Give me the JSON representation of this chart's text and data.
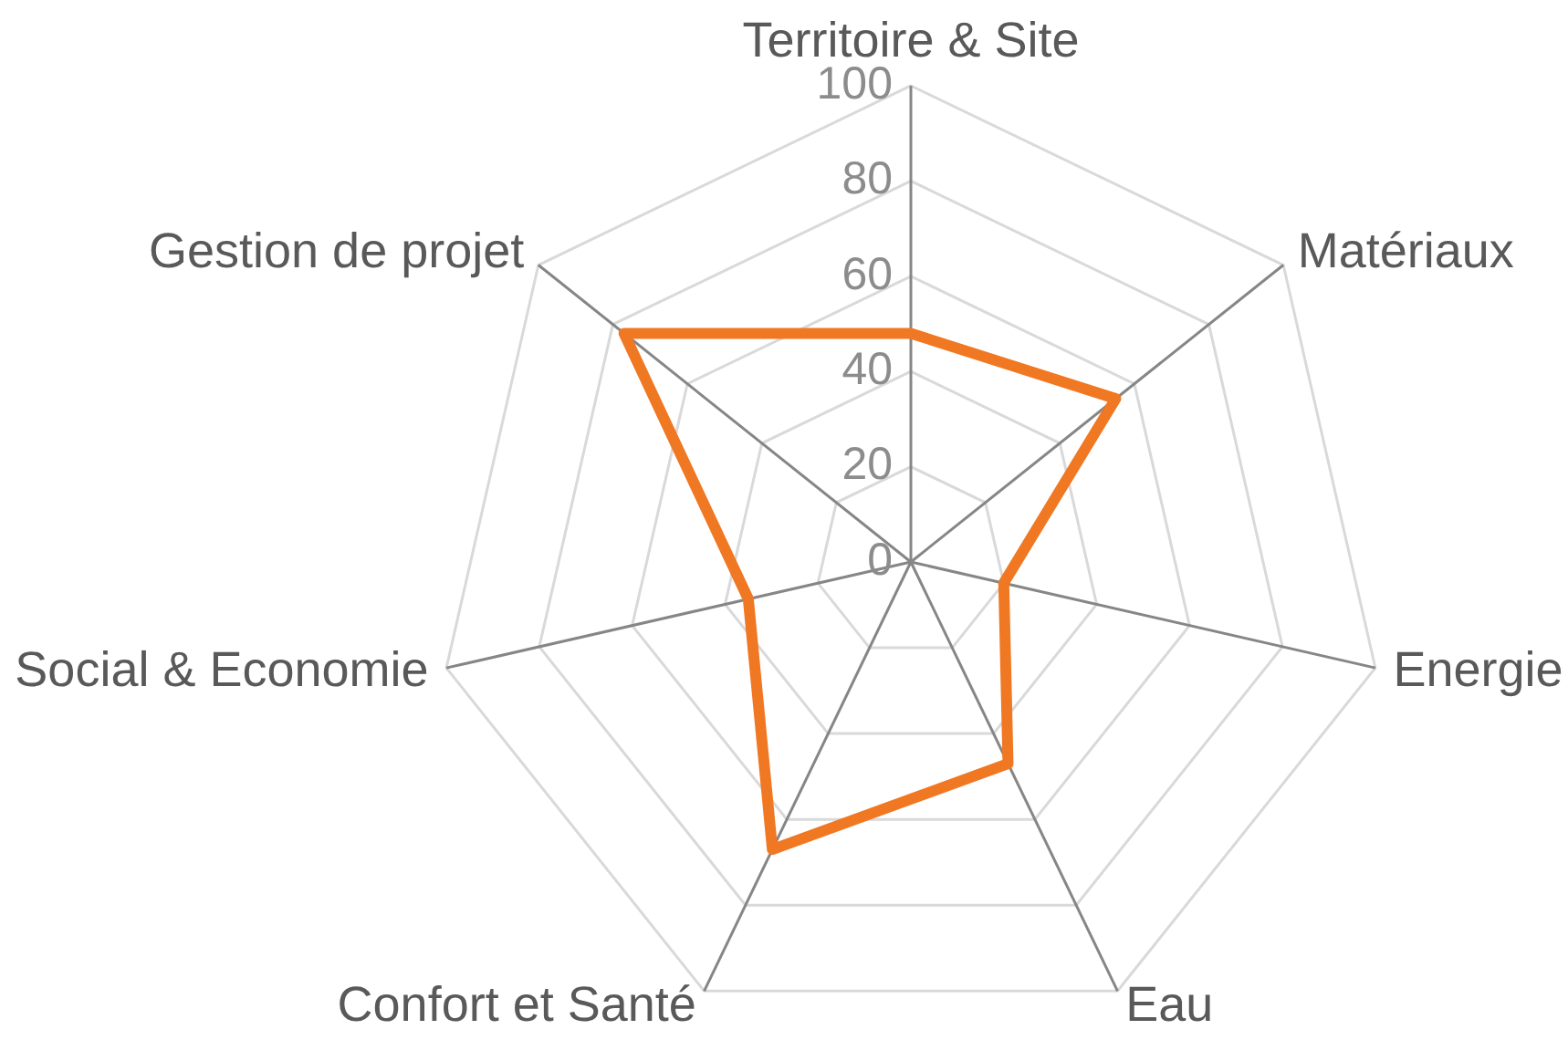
{
  "chart_data": {
    "type": "radar",
    "categories": [
      "Territoire & Site",
      "Matériaux",
      "Energie",
      "Eau",
      "Confort et Santé",
      "Social & Economie",
      "Gestion de projet"
    ],
    "series": [
      {
        "color": "#f07823",
        "values": [
          48,
          55,
          20,
          47,
          67,
          35,
          77
        ]
      }
    ],
    "ylim": [
      0,
      100
    ],
    "yticks": [
      0,
      20,
      40,
      60,
      80,
      100
    ],
    "grid": true,
    "marker": "none"
  }
}
